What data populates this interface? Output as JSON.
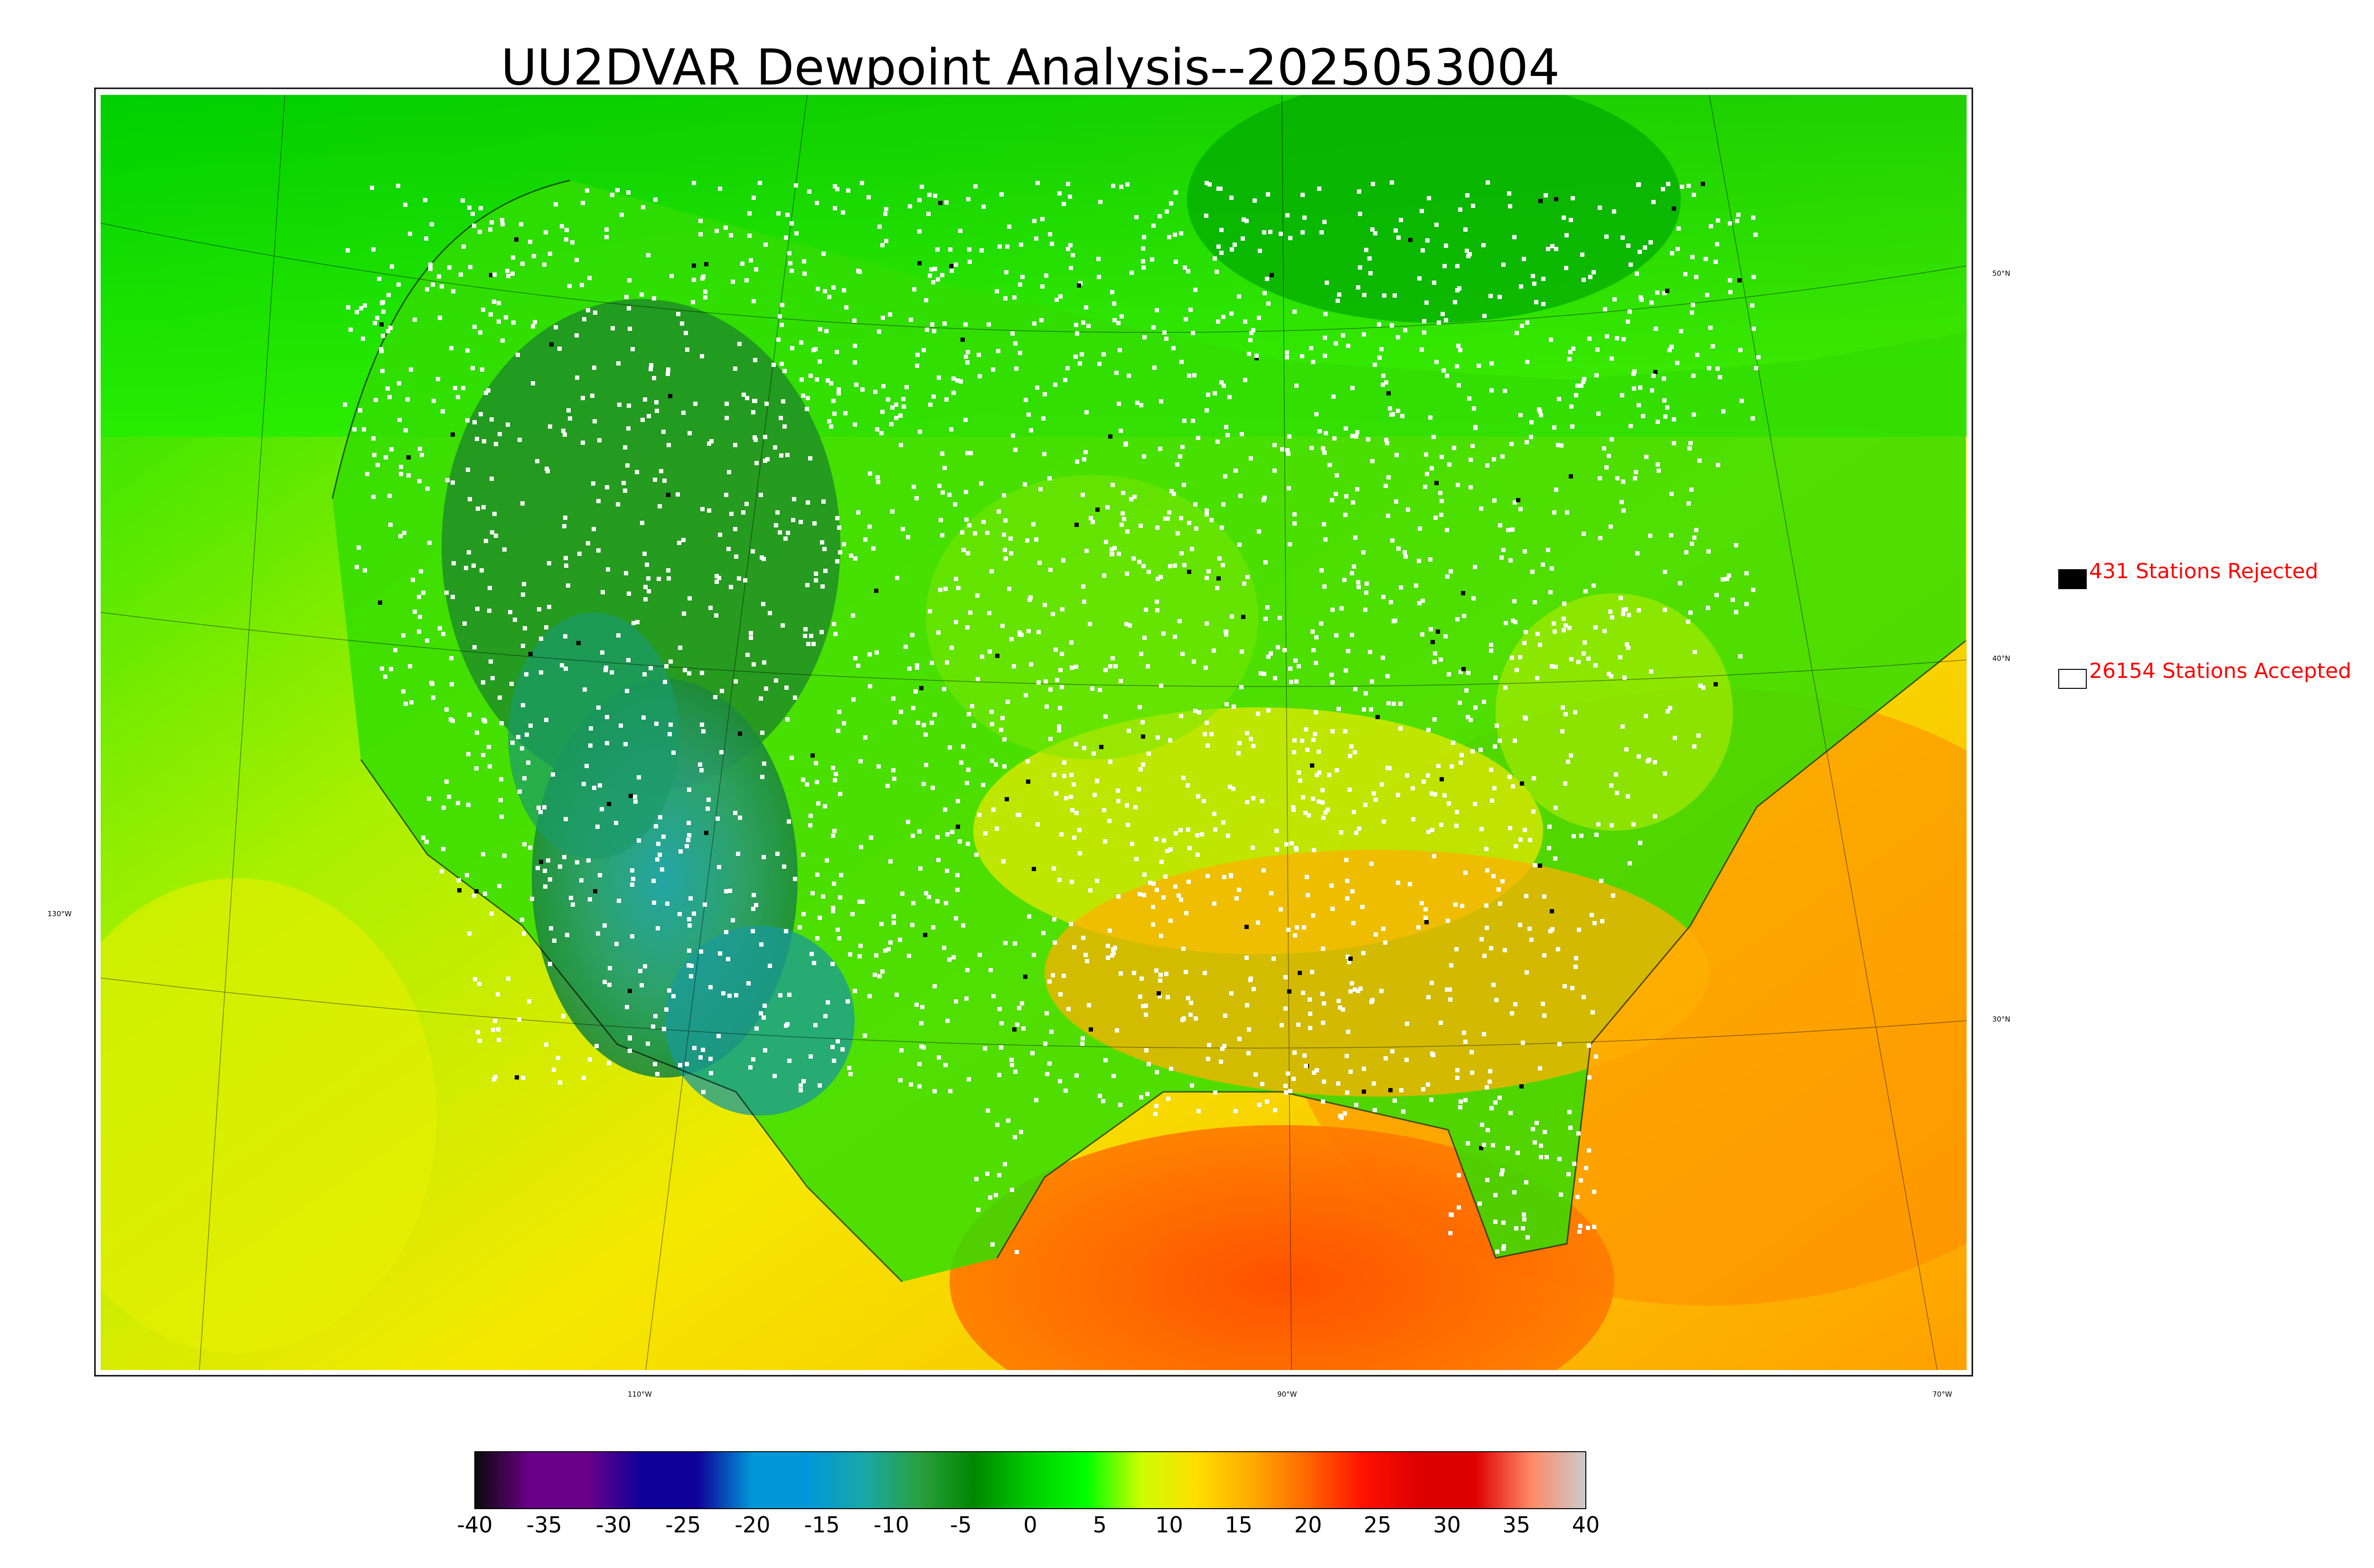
{
  "title": "UU2DVAR Dewpoint Analysis--2025053004",
  "map": {
    "latitude_labels": [
      "50°N",
      "40°N",
      "30°N",
      "130°W"
    ],
    "longitude_labels": [
      "110°W",
      "90°W",
      "70°W"
    ]
  },
  "legend": {
    "rejected": {
      "label": "431 Stations Rejected",
      "swatch_color": "#000000"
    },
    "accepted": {
      "label": "26154 Stations Accepted",
      "swatch_color": "#ffffff"
    }
  },
  "colorbar": {
    "ticks": [
      "-40",
      "-35",
      "-30",
      "-25",
      "-20",
      "-15",
      "-10",
      "-5",
      "0",
      "5",
      "10",
      "15",
      "20",
      "25",
      "30",
      "35",
      "40"
    ],
    "stops": [
      "#0a0a0a",
      "#6a0088",
      "#6a0088",
      "#10009a",
      "#10009a",
      "#0098d8",
      "#0098d8",
      "#18a8a8",
      "#2aa040",
      "#008800",
      "#00cc00",
      "#00ff00",
      "#ccff00",
      "#ffdd00",
      "#ffaa00",
      "#ff6600",
      "#ff1100",
      "#dd0000",
      "#dd0000",
      "#ff8866",
      "#cccccc"
    ]
  }
}
